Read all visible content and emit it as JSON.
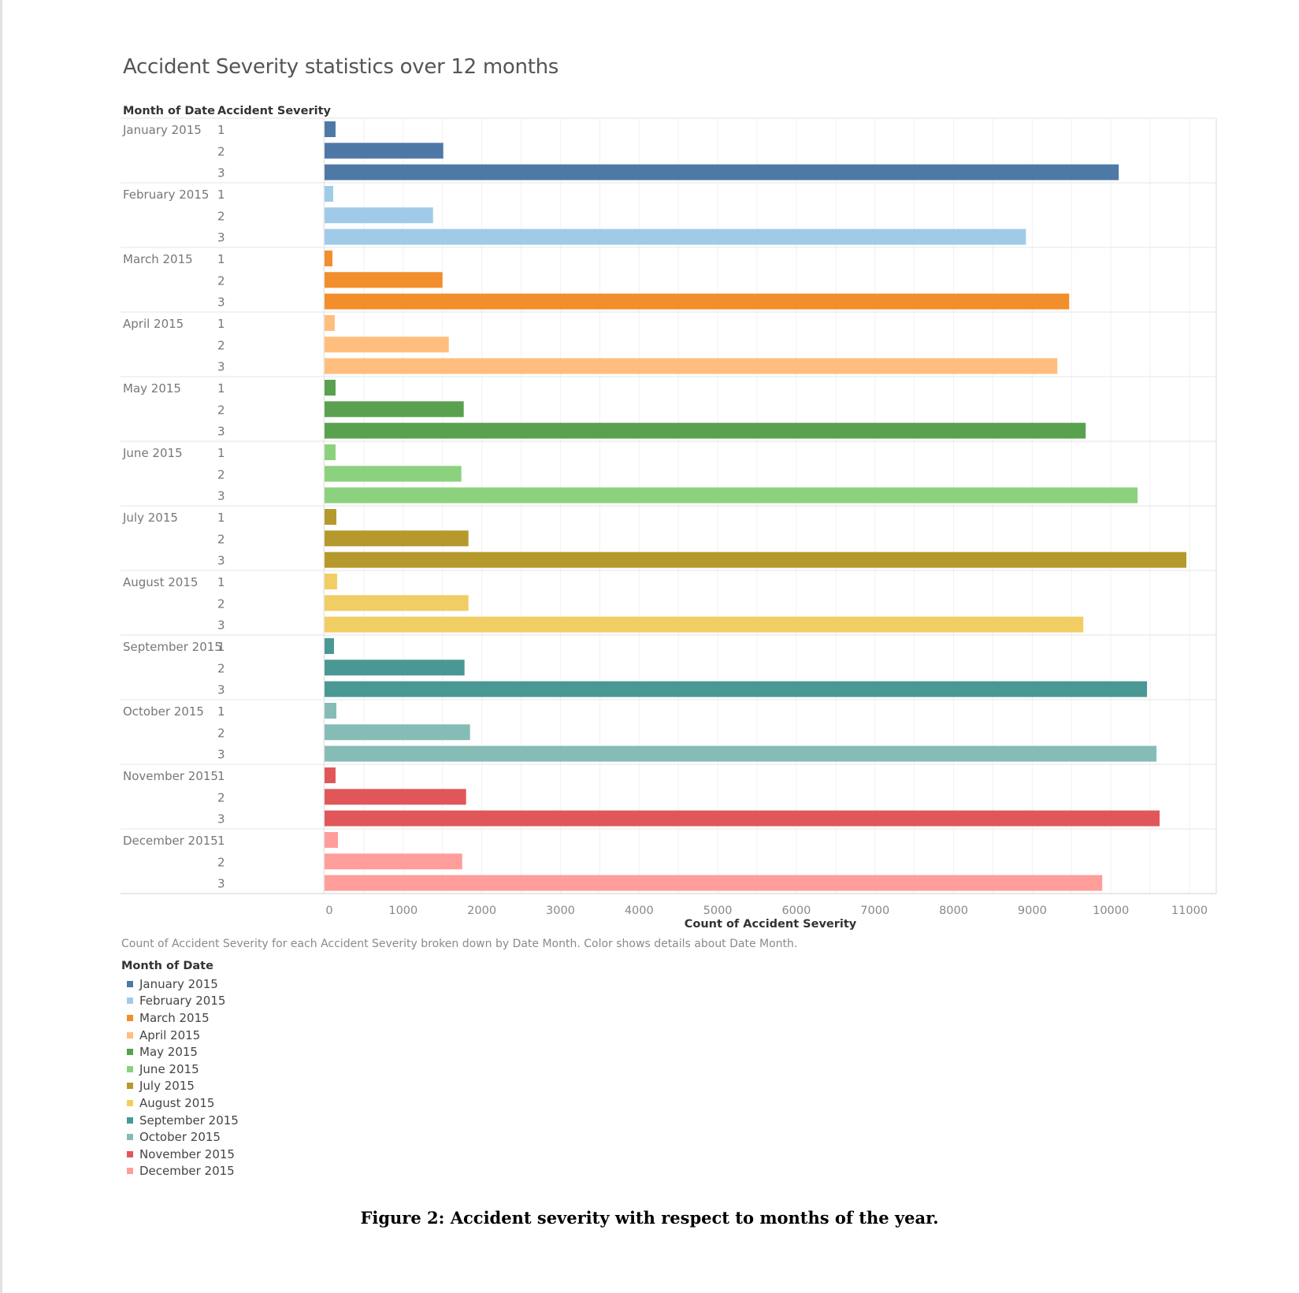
{
  "chart_title": "Accident Severity statistics over 12 months",
  "chart_data": {
    "type": "bar",
    "orientation": "horizontal",
    "title": "Accident Severity statistics over 12 months",
    "row_headers": [
      "Month of Date",
      "Accident Severity"
    ],
    "xlabel": "Count of Accident Severity",
    "xlim": [
      0,
      11000
    ],
    "xticks": [
      "0",
      "1000",
      "2000",
      "3000",
      "4000",
      "5000",
      "6000",
      "7000",
      "8000",
      "9000",
      "10000",
      "11000"
    ],
    "grid": true,
    "groups": [
      {
        "label": "January 2015",
        "color": "#4e79a7",
        "categories": [
          "1",
          "2",
          "3"
        ],
        "values": [
          140,
          1510,
          10100
        ]
      },
      {
        "label": "February 2015",
        "color": "#a0cbe8",
        "categories": [
          "1",
          "2",
          "3"
        ],
        "values": [
          110,
          1380,
          8920
        ]
      },
      {
        "label": "March 2015",
        "color": "#f28e2b",
        "categories": [
          "1",
          "2",
          "3"
        ],
        "values": [
          100,
          1500,
          9470
        ]
      },
      {
        "label": "April 2015",
        "color": "#ffbe7d",
        "categories": [
          "1",
          "2",
          "3"
        ],
        "values": [
          130,
          1580,
          9320
        ]
      },
      {
        "label": "May 2015",
        "color": "#59a14f",
        "categories": [
          "1",
          "2",
          "3"
        ],
        "values": [
          140,
          1770,
          9680
        ]
      },
      {
        "label": "June 2015",
        "color": "#8cd17d",
        "categories": [
          "1",
          "2",
          "3"
        ],
        "values": [
          140,
          1740,
          10340
        ]
      },
      {
        "label": "July 2015",
        "color": "#b6992d",
        "categories": [
          "1",
          "2",
          "3"
        ],
        "values": [
          150,
          1830,
          10960
        ]
      },
      {
        "label": "August 2015",
        "color": "#f1ce63",
        "categories": [
          "1",
          "2",
          "3"
        ],
        "values": [
          160,
          1830,
          9650
        ]
      },
      {
        "label": "September 2015",
        "color": "#499894",
        "categories": [
          "1",
          "2",
          "3"
        ],
        "values": [
          120,
          1780,
          10460
        ]
      },
      {
        "label": "October 2015",
        "color": "#86bcb6",
        "categories": [
          "1",
          "2",
          "3"
        ],
        "values": [
          150,
          1850,
          10580
        ]
      },
      {
        "label": "November 2015",
        "color": "#e15759",
        "categories": [
          "1",
          "2",
          "3"
        ],
        "values": [
          140,
          1800,
          10620
        ]
      },
      {
        "label": "December 2015",
        "color": "#ff9d9a",
        "categories": [
          "1",
          "2",
          "3"
        ],
        "values": [
          170,
          1750,
          9890
        ]
      }
    ],
    "caption": "Count of Accident Severity for each Accident Severity broken down by Date Month.  Color shows details about Date Month.",
    "legend": {
      "title": "Month of Date",
      "placement": "bottom-left",
      "items": [
        "January 2015",
        "February 2015",
        "March 2015",
        "April 2015",
        "May 2015",
        "June 2015",
        "July 2015",
        "August 2015",
        "September 2015",
        "October 2015",
        "November 2015",
        "December 2015"
      ]
    }
  },
  "figure_caption": "Figure 2:  Accident severity with respect to months of the year."
}
